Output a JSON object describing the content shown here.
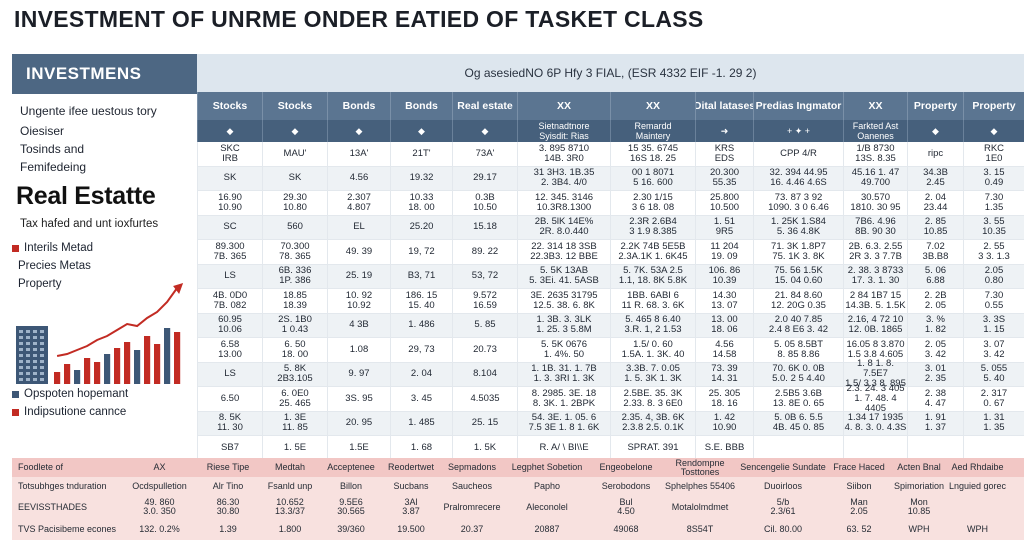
{
  "title": "INVESTMENT OF UNRME ONDER EATIED OF TASKET CLASS",
  "left": {
    "band": "INVESTMENS",
    "lines": [
      "Ungente ifee uestous tory",
      "Oiesiser",
      "Tosinds and",
      "Femifedeing"
    ],
    "heading": "Real Estatte",
    "tax": "Tax hafed and unt ioxfurtes",
    "legend_top": [
      "Interils Metad",
      "Precies Metas",
      "Property"
    ],
    "legend_bottom": [
      "Opspoten hopemant",
      "Indipsutione cannce"
    ],
    "colors": {
      "red": "#c22b23",
      "blue": "#3d5776"
    }
  },
  "banner": "Og asesiedNO 6P Hfy 3 FIAL, (ESR 4332 EIF -1. 29 2)",
  "columns": [
    "Stocks",
    "Stocks",
    "Bonds",
    "Bonds",
    "Real estate",
    "XX",
    "XX",
    "Dital latases",
    "Predias Ingmator",
    "XX",
    "Property",
    "Property"
  ],
  "icon_row": [
    "◆",
    "◆",
    "◆",
    "◆",
    "◆",
    "Sietnadtnore\nSyisdit: Rias",
    "Remardd\nMaintery",
    "➜",
    "+  ✦  +",
    "Farkted Ast\nOanenes",
    "◆",
    "◆"
  ],
  "rows": [
    [
      "SKC\nIRB",
      "MAU'",
      "13A'",
      "21T'",
      "73A'",
      "3. 895 8710\n14B. 3R0",
      "15 35. 6745\n16S 18. 25",
      "KRS\nEDS",
      "CPP    4/R",
      "1/B 8730\n13S. 8.35",
      "ripc",
      "RKC\n1E0"
    ],
    [
      "SK",
      "SK",
      "4.56",
      "19.32",
      "29.17",
      "31 3H3. 1B.35\n2. 3B4. 4/0",
      "00 1 8071\n5 16. 600",
      "20.300\n55.35",
      "32. 394    44.95\n16. 4.46    4.6S",
      "45.16  1. 47\n49.700",
      "34.3B\n2.45",
      "3. 15\n0.49"
    ],
    [
      "16.90\n10.90",
      "29.30\n10.80",
      "2.307\n4.807",
      "10.33\n18. 00",
      "0.3B\n10.50",
      "12. 345. 3146\n10.3R8.1300",
      "2.30   1/15\n3 6 18. 08",
      "25.800\n10.500",
      "73. 87    3 92\n1090. 3 0 6.46",
      "30.570\n1810. 30 95",
      "2. 04\n23.44",
      "7.30\n1.35"
    ],
    [
      "SC",
      "560",
      "EL",
      "25.20",
      "15.18",
      "2B. 5lK 14E%\n2R. 8.0.440",
      "2.3R 2.6B4\n3 1.9 8.385",
      "1. 51\n9R5",
      "1. 25K    1.S84\n5. 36    4.8K",
      "7B6. 4.96\n8B. 90 30",
      "2. 85\n10.85",
      "3. 55\n10.35"
    ],
    [
      "89.300\n7B. 365",
      "70.300\n78. 365",
      "49. 39",
      "19, 72",
      "89. 22",
      "22. 314 18 3SB\n22.3B3. 12 BBE",
      "2.2K 74B 5E5B\n2.3A.1K 1. 6K45",
      "11 204\n19. 09",
      "71. 3K    1.8P7\n75. 1K    3. 8K",
      "2B. 6.3. 2.55\n2R 3. 3 7.7B",
      "7.02\n3B.B8",
      "2. 55\n3 3. 1.3"
    ],
    [
      "LS",
      "6B. 336\n1P. 386",
      "25. 19",
      "B3, 71",
      "53, 72",
      "5. 5K 13AB\n5. 3Ei. 41. 5ASB",
      "5. 7K. 53A  2.5\n1.1, 18. 8K 5.8K",
      "106. 86\n10.39",
      "75. 56    1.5K\n15. 04    0.60",
      "2. 38. 3 8733\n17. 3. 1. 30",
      "5. 06\n6.88",
      "2.05\n0.80"
    ],
    [
      "4B. 0D0\n7B. 082",
      "18.85\n18.39",
      "10. 92\n10.92",
      "186. 15\n15. 40",
      "9.572\n16.59",
      "3E. 2635 31795\n12.5. 38. 6. 8K",
      "1BB. 6ABI 6\n11 R. 68. 3. 6K",
      "14.30\n13. 07",
      "21. 84    8.60\n12. 20G    0.35",
      "2 84 1B7 15\n14.3B. 5. 1.5K",
      "2. 2B\n2. 05",
      "7.30\n0.55"
    ],
    [
      "60.95\n10.06",
      "2S. 1B0\n1 0.43",
      "4 3B",
      "1. 486",
      "5. 85",
      "1. 3B. 3. 3LK\n1. 25. 3 5.8M",
      "5. 465 8 6.40\n3.R. 1, 2 1.53",
      "13. 00\n18. 06",
      "2.0 40    7.85\n2.4 8 E6    3. 42",
      "2.16, 4 72 10\n12. 0B. 1865",
      "3. %\n1. 82",
      "3. 3S\n1. 15"
    ],
    [
      "6.58\n13.00",
      "6. 50\n18. 00",
      "1.08",
      "29, 73",
      "20.73",
      "5. 5K 0676\n1. 4%. 50",
      "1.5/ 0. 60\n1.5A. 1. 3K. 40",
      "4.56\n14.58",
      "5. 05    8.5BT\n8. 85    8.86",
      "16.05 8 3.870\n1.5 3.8 4.605",
      "2. 05\n3. 42",
      "3. 07\n3. 42"
    ],
    [
      "LS",
      "5. 8K\n2B3.105",
      "9. 97",
      "2. 04",
      "8.104",
      "1. 1B. 31. 1. 7B\n1. 3. 3RI  1. 3K",
      "3.3B. 7. 0.05\n1. 5. 3K 1. 3K",
      "73. 39\n14. 31",
      "70. 6K    0. 0B\n5.0. 2 5    4.40",
      "1. 8 1. 8. 7.5E7\n1.5/ 3.3 8. 895",
      "3. 01\n2. 35",
      "5. 055\n5. 40"
    ],
    [
      "6.50",
      "6. 0E0\n25. 465",
      "3S. 95",
      "3. 45",
      "4.5035",
      "8. 2985. 3E. 18\n8. 3K. 1. 2BPK",
      "2.5BE. 35. 3K\n2.33. 8. 3 6E0",
      "25. 305\n18. 16",
      "2.5B5    3.6B\n13. 8E    0. 65",
      "2.3. 24. 3 405\n1. 7. 48. 4 4405",
      "2. 38\n4. 47",
      "2. 317\n0. 67"
    ],
    [
      "8. 5K\n11. 30",
      "1. 3E\n11. 85",
      "20. 95",
      "1. 485",
      "25. 15",
      "54. 3E. 1. 05. 6\n7.5 3E 1. 8 1. 6K",
      "2.35. 4, 3B. 6K\n2.3.8 2.5. 0.1K",
      "1. 42\n10.90",
      "5. 0B    6. 5.5\n4B. 45    0. 85",
      "1.34  17 1935\n4. 8. 3. 0. 4.3S",
      "1. 91\n1. 37",
      "1. 31\n1. 35"
    ],
    [
      "SB7",
      "1. 5E",
      "1.5E",
      "1. 68",
      "1. 5K",
      "R. A/ \\ BI\\\\E",
      "SPRAT. 391",
      "S.E. BBB",
      "",
      "",
      "",
      ""
    ]
  ],
  "footer": [
    [
      "Foodlete of",
      "AX",
      "Riese Tipe",
      "Medtah",
      "Acceptenee",
      "Reodertwet",
      "Sepmadons",
      "Legphet Sobetion",
      "Engeobelone",
      "Rendompne\nTosttones",
      "Sencengelie Sundate",
      "Frace Haced",
      "Acten Bnal",
      "Aed Rhdaibe"
    ],
    [
      "Totsubhges tnduration",
      "Ocdspulletion",
      "Alr Tino",
      "Fsanld unp",
      "Billon",
      "Sucbans",
      "Saucheos",
      "Papho",
      "Serobodons",
      "Sphelphes 55406",
      "Duoirloos",
      "Siibon",
      "Spimoriation",
      "Lnguied gorec"
    ],
    [
      "EEVISSTHADES",
      "49. 860\n3.0. 350",
      "86.30\n30.80",
      "10.652\n13.3/37",
      "9.5E6\n30.565",
      "3Al\n3.87",
      "Pralromrecere",
      "Aleconolel",
      "Bul\n4.50",
      "Motalolmdmet",
      "5/b\n2.3/61",
      "Man\n2.05",
      "Mon\n10.85",
      ""
    ],
    [
      "TVS Pacisibeme econes",
      "132. 0.2%",
      "1.39",
      "1.800",
      "39/360",
      "19.500",
      "20.37",
      "20887",
      "49068",
      "8S54T",
      "Cil. 80.00",
      "63. 52",
      "WPH",
      "WPH"
    ]
  ],
  "chart_data": {
    "type": "bar",
    "title": "",
    "categories": [
      "1",
      "2",
      "3",
      "4",
      "5",
      "6",
      "7",
      "8",
      "9",
      "10",
      "11",
      "12",
      "13"
    ],
    "series": [
      {
        "name": "",
        "values": [
          12,
          20,
          14,
          26,
          22,
          30,
          36,
          42,
          34,
          48,
          40,
          56,
          52
        ]
      }
    ],
    "trend": [
      28,
      30,
      34,
      38,
      44,
      48,
      54,
      60,
      58,
      66,
      72,
      82,
      96
    ],
    "ylim": [
      0,
      100
    ]
  }
}
